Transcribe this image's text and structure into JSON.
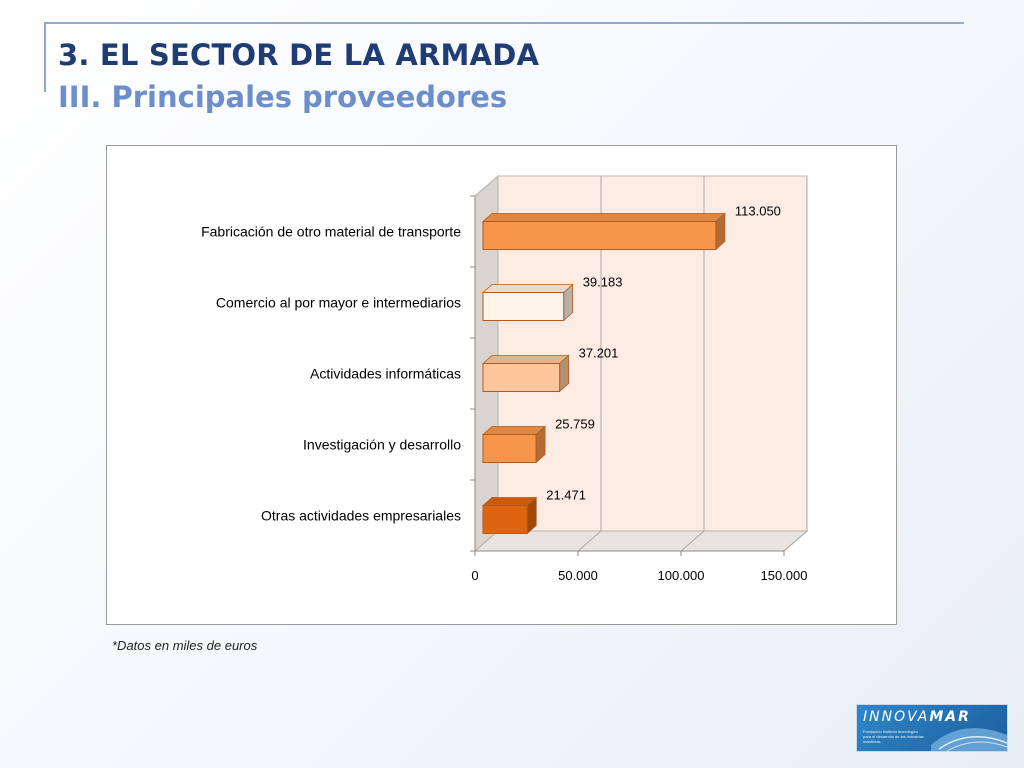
{
  "header": {
    "title": "3. EL SECTOR DE LA ARMADA",
    "subtitle": "III. Principales proveedores"
  },
  "footnote": "*Datos en miles de euros",
  "logo": {
    "text": "INNOVAMAR",
    "tagline": "Fundación Instituto tecnológico para el desarrollo de las industrias marítimas"
  },
  "colors": {
    "title": "#1f3c74",
    "subtitle": "#6c8fcb",
    "plot_background": "#fdece4",
    "bars": [
      "#f7954a",
      "#fff3ea",
      "#fdc79b",
      "#f7954a",
      "#e0640f"
    ]
  },
  "chart_data": {
    "type": "bar",
    "orientation": "horizontal",
    "style": "3d",
    "categories": [
      "Fabricación de otro material de transporte",
      "Comercio al por mayor e intermediarios",
      "Actividades informáticas",
      "Investigación y desarrollo",
      "Otras actividades empresariales"
    ],
    "values": [
      113050,
      39183,
      37201,
      25759,
      21471
    ],
    "value_labels": [
      "113.050",
      "39.183",
      "37.201",
      "25.759",
      "21.471"
    ],
    "xlim": [
      0,
      150000
    ],
    "x_ticks": [
      0,
      50000,
      100000,
      150000
    ],
    "x_tick_labels": [
      "0",
      "50.000",
      "100.000",
      "150.000"
    ],
    "grid": true,
    "legend": "none"
  }
}
